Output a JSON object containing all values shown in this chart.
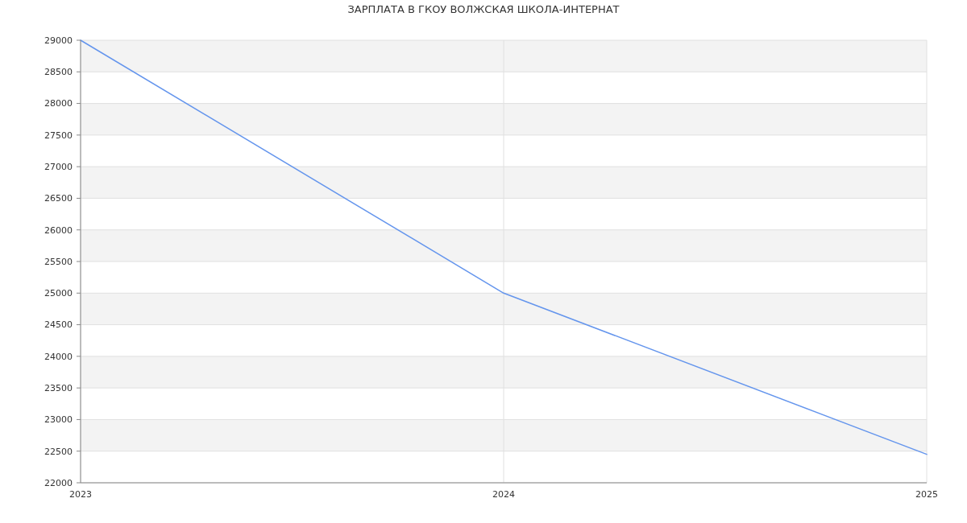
{
  "chart_data": {
    "type": "line",
    "title": "ЗАРПЛАТА В ГКОУ ВОЛЖСКАЯ ШКОЛА-ИНТЕРНАТ",
    "x": [
      2023,
      2024,
      2025
    ],
    "xlim": [
      2023,
      2025
    ],
    "xticks": [
      2023,
      2024,
      2025
    ],
    "ylim": [
      22000,
      29000
    ],
    "yticks": [
      22000,
      22500,
      23000,
      23500,
      24000,
      24500,
      25000,
      25500,
      26000,
      26500,
      27000,
      27500,
      28000,
      28500,
      29000
    ],
    "series": [
      {
        "color": "#6495ed",
        "values": [
          29000,
          25000,
          22450
        ]
      }
    ],
    "grid": true
  }
}
